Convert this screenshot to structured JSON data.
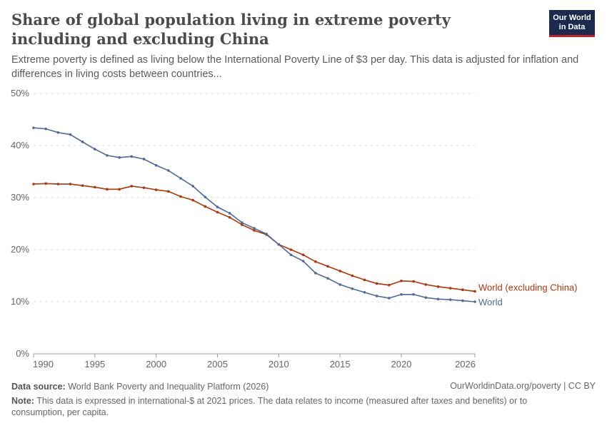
{
  "header": {
    "title": "Share of global population living in extreme poverty including and excluding China",
    "subtitle": "Extreme poverty is defined as living below the International Poverty Line of $3 per day. This data is adjusted for inflation and differences in living costs between countries...",
    "logo": "Our World in Data"
  },
  "footer": {
    "source_label": "Data source:",
    "source": "World Bank Poverty and Inequality Platform (2026)",
    "link": "OurWorldinData.org/poverty | CC BY",
    "note_label": "Note:",
    "note": "This data is expressed in international-$ at 2021 prices. The data relates to income (measured after taxes and benefits) or to consumption, per capita."
  },
  "chart_data": {
    "type": "line",
    "title": "",
    "xlabel": "",
    "ylabel": "",
    "xlim": [
      1990,
      2026
    ],
    "ylim": [
      0,
      50
    ],
    "grid": "horizontal dashed",
    "legend": "inline-right",
    "y_ticks": [
      "0%",
      "10%",
      "20%",
      "30%",
      "40%",
      "50%"
    ],
    "x_ticks": [
      "1990",
      "1995",
      "2000",
      "2005",
      "2010",
      "2015",
      "2020",
      "2026"
    ],
    "x": [
      1990,
      1991,
      1992,
      1993,
      1994,
      1995,
      1996,
      1997,
      1998,
      1999,
      2000,
      2001,
      2002,
      2003,
      2004,
      2005,
      2006,
      2007,
      2008,
      2009,
      2010,
      2011,
      2012,
      2013,
      2014,
      2015,
      2016,
      2017,
      2018,
      2019,
      2020,
      2021,
      2022,
      2023,
      2024,
      2025,
      2026
    ],
    "series": [
      {
        "name": "World (excluding China)",
        "color": "#b13507",
        "values": [
          32.6,
          32.7,
          32.6,
          32.6,
          32.3,
          32.0,
          31.6,
          31.6,
          32.2,
          31.9,
          31.5,
          31.2,
          30.2,
          29.5,
          28.3,
          27.2,
          26.2,
          24.8,
          23.7,
          22.9,
          21.0,
          20.0,
          19.0,
          17.7,
          16.8,
          15.9,
          15.0,
          14.2,
          13.5,
          13.2,
          14.0,
          13.9,
          13.3,
          12.9,
          12.6,
          12.3,
          12.0
        ]
      },
      {
        "name": "World",
        "color": "#4c6a9c",
        "values": [
          43.4,
          43.2,
          42.5,
          42.1,
          40.7,
          39.3,
          38.1,
          37.7,
          37.9,
          37.4,
          36.2,
          35.2,
          33.7,
          32.2,
          30.1,
          28.2,
          27.0,
          25.2,
          24.1,
          23.0,
          21.0,
          19.0,
          17.8,
          15.5,
          14.5,
          13.3,
          12.5,
          11.8,
          11.1,
          10.7,
          11.4,
          11.4,
          10.8,
          10.5,
          10.4,
          10.2,
          10.0
        ]
      }
    ]
  }
}
